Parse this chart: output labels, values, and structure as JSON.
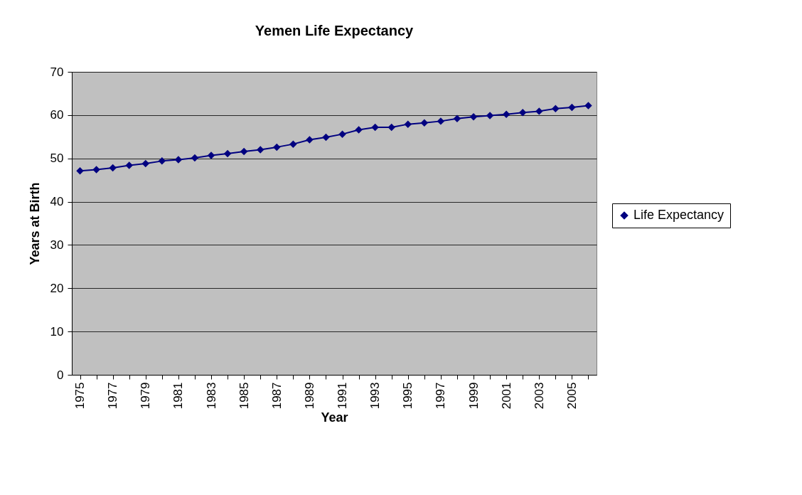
{
  "chart_data": {
    "type": "line",
    "title": "Yemen Life Expectancy",
    "xlabel": "Year",
    "ylabel": "Years at Birth",
    "categories": [
      "1975",
      null,
      "1977",
      null,
      "1979",
      null,
      "1981",
      null,
      "1983",
      null,
      "1985",
      null,
      "1987",
      null,
      "1989",
      null,
      "1991",
      null,
      "1993",
      null,
      "1995",
      null,
      "1997",
      null,
      "1999",
      null,
      "2001",
      null,
      "2003",
      null,
      "2005",
      null
    ],
    "series": [
      {
        "name": "Life Expectancy",
        "color": "#000080",
        "values": [
          47.1,
          47.4,
          47.8,
          48.4,
          48.8,
          49.4,
          49.7,
          50.1,
          50.7,
          51.1,
          51.6,
          52.0,
          52.6,
          53.3,
          54.3,
          54.9,
          55.6,
          56.6,
          57.2,
          57.2,
          57.9,
          58.2,
          58.6,
          59.2,
          59.6,
          59.9,
          60.2,
          60.6,
          60.9,
          61.5,
          61.8,
          62.2
        ]
      }
    ],
    "ylim": [
      0,
      70
    ],
    "yticks": [
      0,
      10,
      20,
      30,
      40,
      50,
      60,
      70
    ],
    "grid": "y",
    "legend": "right",
    "marker": "diamond",
    "line_style": "solid"
  }
}
